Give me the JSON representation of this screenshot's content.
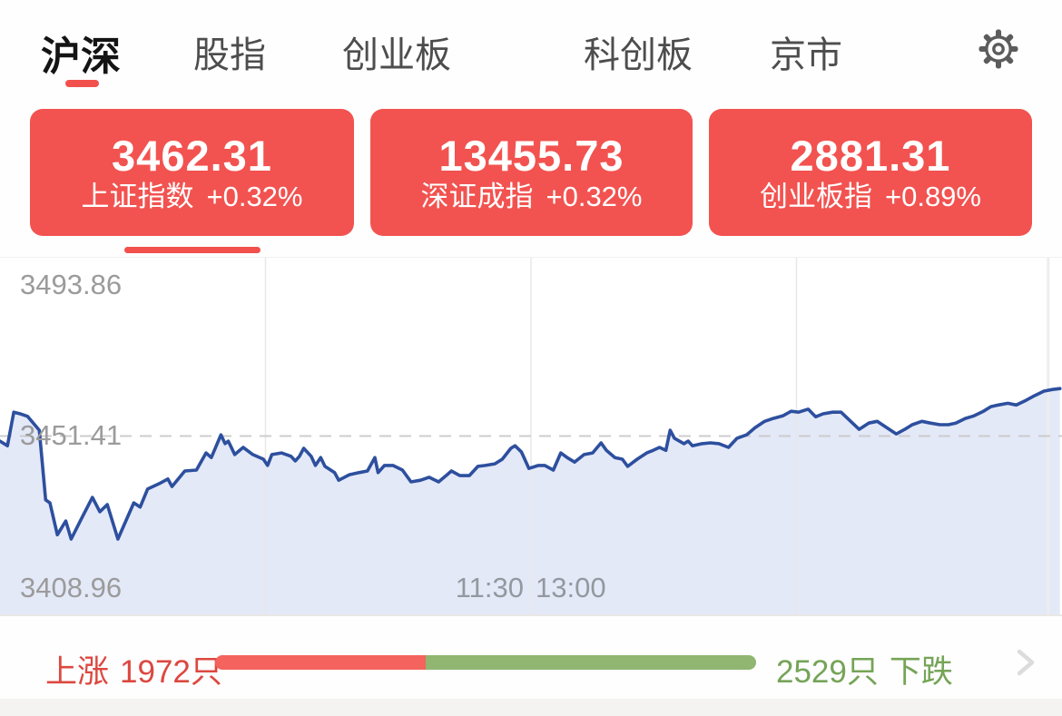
{
  "tabs": {
    "items": [
      {
        "label": "沪深",
        "active": true
      },
      {
        "label": "股指",
        "active": false
      },
      {
        "label": "创业板",
        "active": false
      },
      {
        "label": "科创板",
        "active": false
      },
      {
        "label": "京市",
        "active": false
      }
    ]
  },
  "icons": {
    "settings": "gear-icon",
    "more": "chevron-right-icon"
  },
  "index_cards": [
    {
      "value": "3462.31",
      "name": "上证指数",
      "change": "+0.32%",
      "selected": true
    },
    {
      "value": "13455.73",
      "name": "深证成指",
      "change": "+0.32%",
      "selected": false
    },
    {
      "value": "2881.31",
      "name": "创业板指",
      "change": "+0.89%",
      "selected": false
    }
  ],
  "chart_data": {
    "type": "area",
    "y_labels": [
      "3493.86",
      "3451.41",
      "3408.96"
    ],
    "x_labels": [
      "11:30",
      "13:00"
    ],
    "y_axis": {
      "max": 3493.86,
      "baseline": 3451.41,
      "min": 3408.96
    },
    "grid": {
      "vertical_fractions": [
        0.25,
        0.5,
        0.75
      ],
      "time_cursor_fraction": 0.987,
      "baseline_dashed": true
    },
    "series": [
      {
        "name": "上证指数",
        "points": [
          [
            0.0,
            3450.2
          ],
          [
            0.007,
            3449.1
          ],
          [
            0.013,
            3457.1
          ],
          [
            0.019,
            3456.7
          ],
          [
            0.026,
            3456.1
          ],
          [
            0.037,
            3452.8
          ],
          [
            0.043,
            3436.2
          ],
          [
            0.047,
            3435.5
          ],
          [
            0.054,
            3427.9
          ],
          [
            0.062,
            3431.2
          ],
          [
            0.067,
            3426.9
          ],
          [
            0.077,
            3431.9
          ],
          [
            0.087,
            3436.8
          ],
          [
            0.094,
            3433.4
          ],
          [
            0.101,
            3435.1
          ],
          [
            0.111,
            3426.9
          ],
          [
            0.126,
            3435.5
          ],
          [
            0.132,
            3434.5
          ],
          [
            0.139,
            3438.8
          ],
          [
            0.15,
            3440.1
          ],
          [
            0.158,
            3441.2
          ],
          [
            0.162,
            3439.4
          ],
          [
            0.174,
            3443.1
          ],
          [
            0.185,
            3443.3
          ],
          [
            0.194,
            3447.4
          ],
          [
            0.199,
            3446.3
          ],
          [
            0.208,
            3451.7
          ],
          [
            0.212,
            3449.6
          ],
          [
            0.215,
            3450.2
          ],
          [
            0.221,
            3447.0
          ],
          [
            0.229,
            3448.7
          ],
          [
            0.238,
            3447.0
          ],
          [
            0.248,
            3445.9
          ],
          [
            0.252,
            3444.4
          ],
          [
            0.256,
            3447.0
          ],
          [
            0.265,
            3447.4
          ],
          [
            0.274,
            3446.6
          ],
          [
            0.278,
            3445.5
          ],
          [
            0.282,
            3446.6
          ],
          [
            0.286,
            3448.5
          ],
          [
            0.293,
            3446.6
          ],
          [
            0.297,
            3444.4
          ],
          [
            0.302,
            3446.3
          ],
          [
            0.306,
            3444.2
          ],
          [
            0.315,
            3442.7
          ],
          [
            0.319,
            3440.9
          ],
          [
            0.329,
            3442.2
          ],
          [
            0.338,
            3442.7
          ],
          [
            0.346,
            3443.1
          ],
          [
            0.353,
            3446.3
          ],
          [
            0.356,
            3442.7
          ],
          [
            0.362,
            3444.4
          ],
          [
            0.37,
            3444.4
          ],
          [
            0.379,
            3443.3
          ],
          [
            0.387,
            3440.5
          ],
          [
            0.396,
            3440.9
          ],
          [
            0.404,
            3441.6
          ],
          [
            0.413,
            3440.5
          ],
          [
            0.421,
            3442.2
          ],
          [
            0.425,
            3443.1
          ],
          [
            0.433,
            3442.0
          ],
          [
            0.442,
            3442.0
          ],
          [
            0.45,
            3444.2
          ],
          [
            0.457,
            3444.4
          ],
          [
            0.466,
            3444.8
          ],
          [
            0.473,
            3445.9
          ],
          [
            0.481,
            3448.5
          ],
          [
            0.485,
            3449.1
          ],
          [
            0.491,
            3447.6
          ],
          [
            0.498,
            3443.7
          ],
          [
            0.507,
            3444.4
          ],
          [
            0.513,
            3444.4
          ],
          [
            0.521,
            3443.3
          ],
          [
            0.528,
            3447.4
          ],
          [
            0.534,
            3446.3
          ],
          [
            0.541,
            3445.2
          ],
          [
            0.55,
            3447.0
          ],
          [
            0.558,
            3447.4
          ],
          [
            0.566,
            3449.8
          ],
          [
            0.571,
            3448.0
          ],
          [
            0.579,
            3446.3
          ],
          [
            0.586,
            3445.9
          ],
          [
            0.591,
            3444.2
          ],
          [
            0.6,
            3445.9
          ],
          [
            0.609,
            3447.4
          ],
          [
            0.615,
            3448.0
          ],
          [
            0.621,
            3448.7
          ],
          [
            0.627,
            3448.0
          ],
          [
            0.631,
            3452.8
          ],
          [
            0.635,
            3450.9
          ],
          [
            0.644,
            3449.6
          ],
          [
            0.648,
            3450.2
          ],
          [
            0.652,
            3449.1
          ],
          [
            0.661,
            3449.6
          ],
          [
            0.669,
            3449.8
          ],
          [
            0.677,
            3449.6
          ],
          [
            0.686,
            3448.7
          ],
          [
            0.694,
            3450.9
          ],
          [
            0.703,
            3451.7
          ],
          [
            0.711,
            3453.4
          ],
          [
            0.72,
            3454.9
          ],
          [
            0.728,
            3455.6
          ],
          [
            0.737,
            3456.2
          ],
          [
            0.745,
            3457.3
          ],
          [
            0.752,
            3457.1
          ],
          [
            0.761,
            3457.8
          ],
          [
            0.768,
            3456.0
          ],
          [
            0.775,
            3456.7
          ],
          [
            0.784,
            3457.1
          ],
          [
            0.792,
            3457.1
          ],
          [
            0.801,
            3454.9
          ],
          [
            0.809,
            3453.0
          ],
          [
            0.818,
            3454.5
          ],
          [
            0.826,
            3454.9
          ],
          [
            0.835,
            3453.4
          ],
          [
            0.844,
            3451.9
          ],
          [
            0.852,
            3453.0
          ],
          [
            0.859,
            3454.1
          ],
          [
            0.868,
            3454.9
          ],
          [
            0.876,
            3454.5
          ],
          [
            0.885,
            3454.1
          ],
          [
            0.893,
            3454.1
          ],
          [
            0.9,
            3454.5
          ],
          [
            0.909,
            3455.6
          ],
          [
            0.917,
            3456.2
          ],
          [
            0.926,
            3457.3
          ],
          [
            0.933,
            3458.4
          ],
          [
            0.94,
            3458.8
          ],
          [
            0.949,
            3459.2
          ],
          [
            0.957,
            3458.8
          ],
          [
            0.966,
            3459.9
          ],
          [
            0.974,
            3461.0
          ],
          [
            0.983,
            3462.1
          ],
          [
            0.991,
            3462.5
          ],
          [
            0.998,
            3462.7
          ]
        ]
      }
    ]
  },
  "breadth": {
    "up_label": "上涨",
    "up_count": "1972只",
    "down_count": "2529只",
    "down_label": "下跌",
    "up_bar_percent": 39
  },
  "colors": {
    "accent_red": "#f25350",
    "underline_red": "#f2504d",
    "line_blue": "#2d4f9e",
    "area_fill": "#e4e9f8",
    "grid_gray": "#e8e8e8",
    "dash_gray": "#cccccc",
    "up_text_red": "#dc4840",
    "down_text_green": "#75a457",
    "bar_red": "#f4635e",
    "bar_green": "#90b671"
  }
}
